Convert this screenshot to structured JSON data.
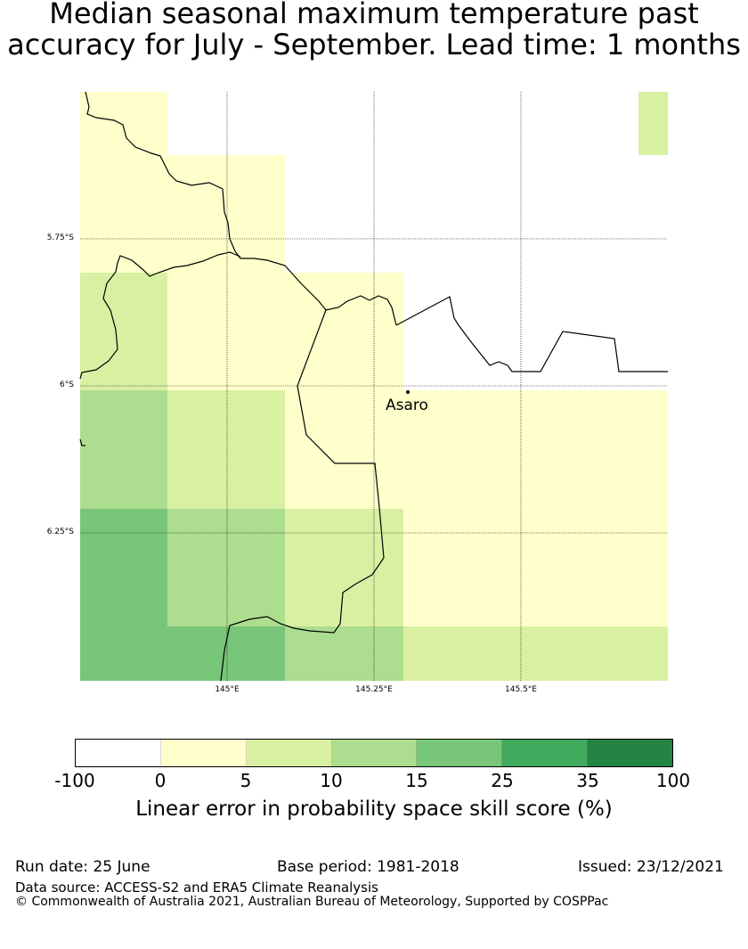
{
  "title": {
    "line1": "Median seasonal maximum temperature past",
    "line2": "accuracy for July - September. Lead time: 1 months"
  },
  "map": {
    "latitude_labels": [
      "5.75°S",
      "6°S",
      "6.25°S"
    ],
    "longitude_labels": [
      "145°E",
      "145.25°E",
      "145.5°E"
    ],
    "place": "Asaro"
  },
  "colorbar": {
    "colors": [
      "#ffffff",
      "#ffffcc",
      "#d9f0a3",
      "#addd8e",
      "#78c679",
      "#41ab5d",
      "#238443"
    ],
    "ticks": [
      "-100",
      "0",
      "5",
      "10",
      "15",
      "25",
      "35",
      "100"
    ],
    "label": "Linear error in probability space skill score (%)"
  },
  "footer": {
    "run_date": "Run date: 25 June",
    "base_period": "Base period: 1981-2018",
    "issued": "Issued: 23/12/2021",
    "data_source": "Data source: ACCESS-S2 and ERA5 Climate Reanalysis",
    "copyright": "© Commonwealth of Australia 2021, Australian Bureau of Meteorology, Supported by COSPPac"
  }
}
